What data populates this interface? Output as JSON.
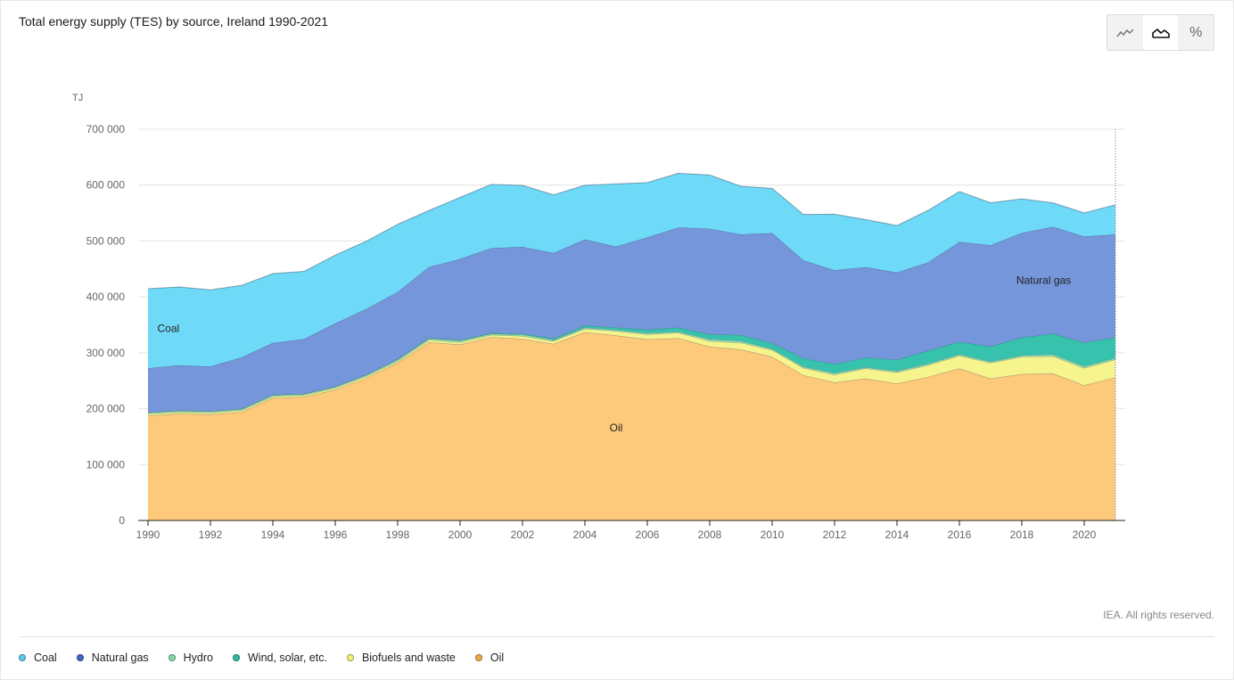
{
  "title": "Total energy supply (TES) by source, Ireland 1990-2021",
  "toolbar": {
    "buttons": [
      {
        "name": "line-chart-icon",
        "active": false
      },
      {
        "name": "area-chart-icon",
        "active": true
      },
      {
        "name": "percent-icon",
        "label": "%",
        "active": false
      }
    ]
  },
  "credit": "IEA. All rights reserved.",
  "legend": [
    {
      "label": "Coal",
      "color": "#5fcbec"
    },
    {
      "label": "Natural gas",
      "color": "#3e67c8"
    },
    {
      "label": "Hydro",
      "color": "#7fd9a8"
    },
    {
      "label": "Wind, solar, etc.",
      "color": "#2bbaa4"
    },
    {
      "label": "Biofuels and waste",
      "color": "#f3f07a"
    },
    {
      "label": "Oil",
      "color": "#f0a946"
    }
  ],
  "chart_data": {
    "type": "area",
    "stacked": true,
    "title": "Total energy supply (TES) by source, Ireland 1990-2021",
    "ylabel": "TJ",
    "ylim": [
      0,
      700000
    ],
    "yticks": [
      0,
      100000,
      200000,
      300000,
      400000,
      500000,
      600000,
      700000
    ],
    "ytick_labels": [
      "0",
      "100 000",
      "200 000",
      "300 000",
      "400 000",
      "500 000",
      "600 000",
      "700 000"
    ],
    "x": [
      1990,
      1991,
      1992,
      1993,
      1994,
      1995,
      1996,
      1997,
      1998,
      1999,
      2000,
      2001,
      2002,
      2003,
      2004,
      2005,
      2006,
      2007,
      2008,
      2009,
      2010,
      2011,
      2012,
      2013,
      2014,
      2015,
      2016,
      2017,
      2018,
      2019,
      2020,
      2021
    ],
    "xtick_labels": [
      "1990",
      "1992",
      "1994",
      "1996",
      "1998",
      "2000",
      "2002",
      "2004",
      "2006",
      "2008",
      "2010",
      "2012",
      "2014",
      "2016",
      "2018",
      "2020"
    ],
    "grid": true,
    "legend_position": "bottom-left",
    "series": [
      {
        "name": "Oil",
        "color": "#fdc97b",
        "values": [
          188000,
          191000,
          190000,
          194000,
          219000,
          221000,
          234000,
          255000,
          282000,
          319000,
          315000,
          328000,
          325000,
          316000,
          337000,
          331000,
          324000,
          326000,
          311000,
          306000,
          293000,
          260000,
          247000,
          254000,
          245000,
          257000,
          272000,
          254000,
          262000,
          263000,
          242000,
          256000
        ]
      },
      {
        "name": "Biofuels and waste",
        "color": "#f6f48c",
        "values": [
          3000,
          3000,
          3000,
          3000,
          3000,
          3000,
          3000,
          3000,
          3000,
          4000,
          4000,
          4000,
          5000,
          5000,
          6000,
          8000,
          9000,
          10000,
          10000,
          12000,
          12000,
          13000,
          14000,
          18000,
          20000,
          21000,
          23000,
          28000,
          31000,
          31000,
          31000,
          32000
        ]
      },
      {
        "name": "Hydro",
        "color": "#8fdeb2",
        "values": [
          2500,
          2700,
          2600,
          2700,
          2700,
          2600,
          2600,
          2600,
          3300,
          2800,
          3100,
          2200,
          3100,
          2200,
          2200,
          2200,
          2600,
          2300,
          3500,
          3500,
          2200,
          2500,
          2900,
          2300,
          2600,
          2900,
          2500,
          2500,
          2500,
          3300,
          3300,
          2700
        ]
      },
      {
        "name": "Wind, solar, etc.",
        "color": "#36c2ac",
        "values": [
          0,
          0,
          0,
          0,
          0,
          0,
          100,
          200,
          500,
          700,
          900,
          1200,
          1400,
          2500,
          3600,
          4000,
          5900,
          6900,
          8600,
          10400,
          10000,
          15000,
          16000,
          17000,
          20000,
          23000,
          22000,
          27000,
          32000,
          37000,
          42000,
          37000
        ]
      },
      {
        "name": "Natural gas",
        "color": "#7596db",
        "values": [
          79000,
          81000,
          80000,
          92000,
          93000,
          98000,
          113000,
          118000,
          120000,
          127000,
          145000,
          152000,
          155000,
          153000,
          154000,
          145000,
          165000,
          179000,
          189000,
          180000,
          197000,
          175000,
          168000,
          162000,
          156000,
          158000,
          179000,
          181000,
          187000,
          191000,
          190000,
          184000
        ]
      },
      {
        "name": "Coal",
        "color": "#6edaf7",
        "values": [
          142000,
          140000,
          137000,
          129000,
          124000,
          121000,
          122000,
          121000,
          121000,
          101000,
          110000,
          114000,
          110000,
          104000,
          97000,
          112000,
          98000,
          97000,
          96000,
          86000,
          80000,
          82000,
          100000,
          85000,
          84000,
          93000,
          90000,
          76000,
          61000,
          43000,
          42000,
          53000
        ]
      }
    ],
    "area_labels": [
      {
        "series": "Coal",
        "text": "Coal"
      },
      {
        "series": "Natural gas",
        "text": "Natural gas"
      },
      {
        "series": "Oil",
        "text": "Oil"
      }
    ]
  }
}
